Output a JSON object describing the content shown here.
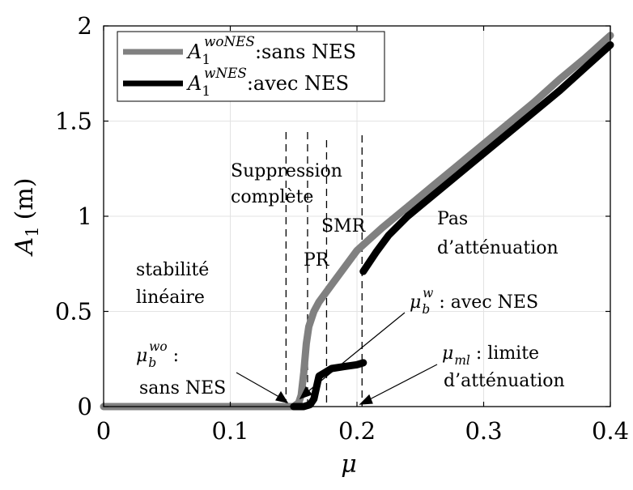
{
  "chart_data": {
    "type": "line",
    "xlabel_symbol": "μ",
    "ylabel": {
      "symbol": "A",
      "subscript": "1",
      "unit": "(m)"
    },
    "xlim": [
      0,
      0.4
    ],
    "ylim": [
      0,
      2
    ],
    "xticks": [
      0,
      0.1,
      0.2,
      0.3,
      0.4
    ],
    "xtick_labels": [
      "0",
      "0.1",
      "0.2",
      "0.3",
      "0.4"
    ],
    "yticks": [
      0,
      0.5,
      1,
      1.5,
      2
    ],
    "ytick_labels": [
      "0",
      "0.5",
      "1",
      "1.5",
      "2"
    ],
    "grid": true,
    "legend_position": "top-left",
    "series": [
      {
        "legend_symbol": "A",
        "legend_subscript": "1",
        "legend_superscript": "woNES",
        "legend_text": ":sans NES",
        "color": "#808080",
        "x": [
          0,
          0.143,
          0.15,
          0.154,
          0.156,
          0.158,
          0.16,
          0.162,
          0.166,
          0.17,
          0.18,
          0.19,
          0.2,
          0.21,
          0.22,
          0.24,
          0.26,
          0.28,
          0.3,
          0.32,
          0.34,
          0.36,
          0.38,
          0.4
        ],
        "y": [
          0,
          0,
          0,
          0.02,
          0.06,
          0.18,
          0.33,
          0.42,
          0.5,
          0.55,
          0.64,
          0.73,
          0.82,
          0.88,
          0.94,
          1.05,
          1.16,
          1.27,
          1.38,
          1.49,
          1.6,
          1.72,
          1.83,
          1.95
        ]
      },
      {
        "legend_symbol": "A",
        "legend_subscript": "1",
        "legend_superscript": "wNES",
        "legend_text": ":avec NES",
        "color": "#000000",
        "segments": [
          {
            "x": [
              0.15,
              0.158,
              0.163,
              0.166,
              0.168,
              0.17,
              0.175,
              0.18,
              0.19,
              0.2,
              0.205
            ],
            "y": [
              0,
              0,
              0.01,
              0.04,
              0.1,
              0.16,
              0.18,
              0.2,
              0.21,
              0.22,
              0.23
            ]
          },
          {
            "x": [
              0.205,
              0.215,
              0.225,
              0.24,
              0.26,
              0.28,
              0.3,
              0.32,
              0.34,
              0.36,
              0.38,
              0.4
            ],
            "y": [
              0.71,
              0.81,
              0.9,
              1.0,
              1.11,
              1.22,
              1.33,
              1.44,
              1.55,
              1.66,
              1.78,
              1.9
            ]
          }
        ]
      }
    ],
    "vertical_dashed_lines_x": [
      0.144,
      0.161,
      0.176,
      0.204
    ],
    "annotations": {
      "stabilite": [
        "stabilité",
        "linéaire"
      ],
      "suppression": [
        "Suppression",
        "complète"
      ],
      "smr": "SMR",
      "pr": "PR",
      "pas": [
        "Pas",
        "d’atténuation"
      ],
      "mub_w": {
        "symbol": "μ",
        "sub": "b",
        "sup": "w",
        "text": " : avec NES"
      },
      "mub_wo": {
        "symbol": "μ",
        "sub": "b",
        "sup": "wo",
        "text": " :",
        "line2": "sans NES"
      },
      "muml": {
        "symbol": "μ",
        "sub": "ml",
        "text": " : limite",
        "line2": "d’atténuation"
      }
    }
  }
}
